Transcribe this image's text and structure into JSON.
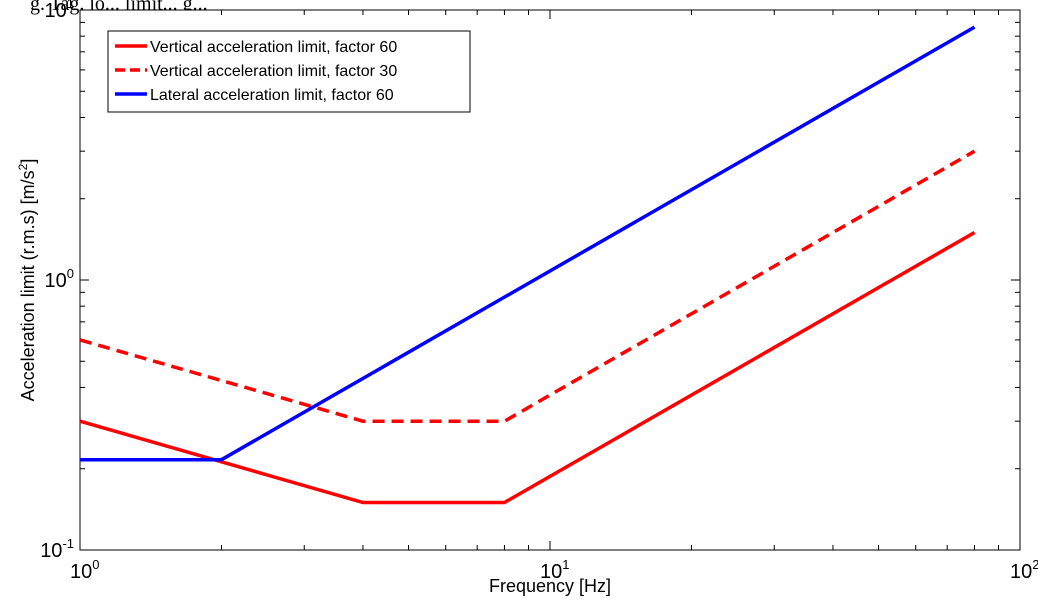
{
  "chart_data": {
    "type": "line",
    "title_fragment": "g. Tag. lo... limit... g...",
    "xlabel": "Frequency [Hz]",
    "ylabel": "Acceleration limit (r.m.s) [m/s",
    "ylabel_sup": "2",
    "ylabel_end": "]",
    "xscale": "log",
    "yscale": "log",
    "xlim": [
      1,
      100
    ],
    "ylim": [
      0.1,
      10
    ],
    "grid": false,
    "legend_position": "top-left",
    "x_ticks": [
      {
        "value": 1,
        "base": "10",
        "exp": "0"
      },
      {
        "value": 10,
        "base": "10",
        "exp": "1"
      },
      {
        "value": 100,
        "base": "10",
        "exp": "2"
      }
    ],
    "y_ticks": [
      {
        "value": 0.1,
        "base": "10",
        "exp": "-1"
      },
      {
        "value": 1,
        "base": "10",
        "exp": "0"
      },
      {
        "value": 10,
        "base": "10",
        "exp": "1"
      }
    ],
    "series": [
      {
        "name": "Vertical acceleration limit, factor 60",
        "color": "#ff0000",
        "dash": "solid",
        "x": [
          1,
          4,
          8,
          80
        ],
        "y": [
          0.3,
          0.15,
          0.15,
          1.5
        ]
      },
      {
        "name": "Vertical acceleration limit, factor 30",
        "color": "#ff0000",
        "dash": "dashed",
        "x": [
          1,
          4,
          8,
          80
        ],
        "y": [
          0.6,
          0.3,
          0.3,
          3.0
        ]
      },
      {
        "name": "Lateral acceleration limit, factor 60",
        "color": "#0000ff",
        "dash": "solid",
        "x": [
          1,
          2,
          80
        ],
        "y": [
          0.216,
          0.216,
          8.64
        ]
      }
    ]
  }
}
